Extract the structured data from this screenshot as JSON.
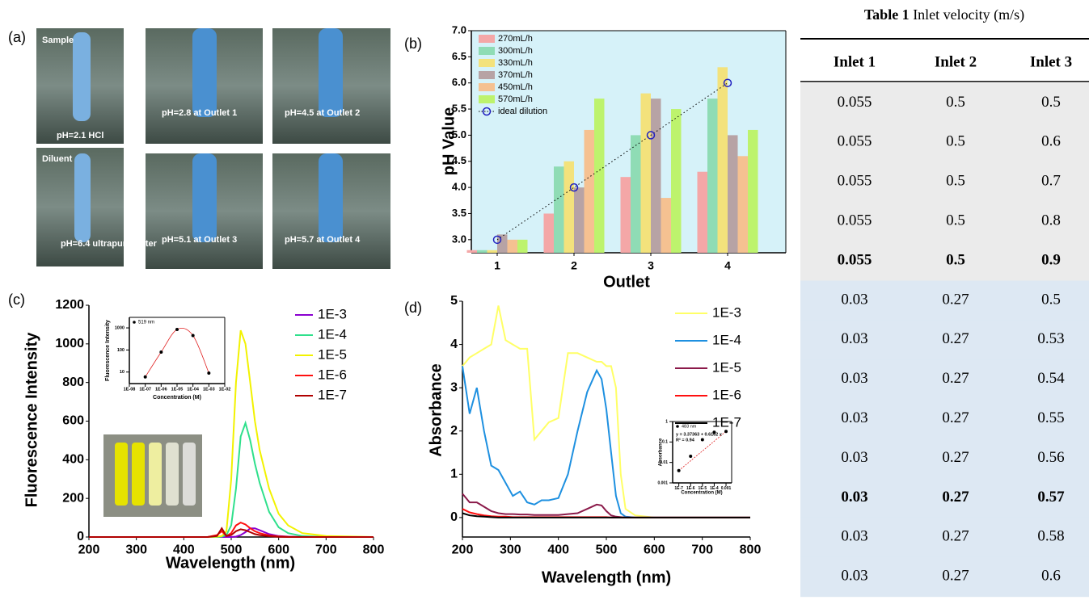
{
  "panel_labels": [
    "(a)",
    "(b)",
    "(c)",
    "(d)"
  ],
  "photos": [
    {
      "title": "Sample",
      "caption": "pH=2.1 HCl"
    },
    {
      "title": "Diluent",
      "caption": "pH=6.4 ultrapure water"
    },
    {
      "caption": "pH=2.8 at Outlet 1"
    },
    {
      "caption": "pH=4.5 at Outlet 2"
    },
    {
      "caption": "pH=5.1 at Outlet 3"
    },
    {
      "caption": "pH=5.7 at Outlet 4"
    }
  ],
  "chart_data": [
    {
      "type": "bar",
      "xlabel": "Outlet",
      "ylabel": "pH Value",
      "categories": [
        "1",
        "2",
        "3",
        "4"
      ],
      "series": [
        {
          "name": "270mL/h",
          "color": "#f4a7a7",
          "values": [
            2.8,
            3.5,
            4.2,
            4.3
          ]
        },
        {
          "name": "300mL/h",
          "color": "#8fdcb5",
          "values": [
            2.8,
            4.4,
            5.0,
            5.7
          ]
        },
        {
          "name": "330mL/h",
          "color": "#f3e27c",
          "values": [
            2.8,
            4.5,
            5.8,
            6.3
          ]
        },
        {
          "name": "370mL/h",
          "color": "#b7a3a5",
          "values": [
            3.1,
            4.0,
            5.7,
            5.0
          ]
        },
        {
          "name": "450mL/h",
          "color": "#f5c191",
          "values": [
            3.0,
            5.1,
            3.8,
            4.6
          ]
        },
        {
          "name": "570mL/h",
          "color": "#bdf36d",
          "values": [
            3.0,
            5.7,
            5.5,
            5.1
          ]
        },
        {
          "name": "ideal dilution",
          "type": "line",
          "color": "#2020c0",
          "values": [
            3.0,
            4.0,
            5.0,
            6.0
          ]
        }
      ],
      "ylim": [
        2.75,
        7.0
      ],
      "yticks": [
        {
          "value": 3.0,
          "label": "3.0"
        },
        3.5,
        {
          "value": 4.0,
          "label": "4.0"
        },
        4.5,
        {
          "value": 5.0,
          "label": "5.0"
        },
        5.5,
        {
          "value": 6.0,
          "label": "6.0"
        },
        6.5,
        {
          "value": 7.0,
          "label": "7.0"
        }
      ],
      "background": "#d6f2f9"
    },
    {
      "type": "line",
      "xlabel": "Wavelength (nm)",
      "ylabel": "Fluorescence Intensity",
      "x": [
        200,
        450,
        470,
        480,
        490,
        500,
        510,
        520,
        530,
        540,
        550,
        560,
        580,
        600,
        620,
        650,
        700,
        800
      ],
      "series": [
        {
          "name": "1E-3",
          "color": "#8a00d0",
          "values": [
            0,
            0,
            0,
            0,
            0,
            0,
            2,
            10,
            25,
            45,
            45,
            35,
            15,
            5,
            2,
            0,
            0,
            0
          ]
        },
        {
          "name": "1E-4",
          "color": "#2fe08c",
          "values": [
            0,
            0,
            0,
            2,
            10,
            60,
            250,
            520,
            590,
            500,
            380,
            280,
            130,
            50,
            20,
            5,
            0,
            0
          ]
        },
        {
          "name": "1E-5",
          "color": "#f2f200",
          "values": [
            0,
            0,
            2,
            5,
            30,
            300,
            800,
            1070,
            1000,
            800,
            600,
            450,
            250,
            120,
            60,
            20,
            5,
            0
          ]
        },
        {
          "name": "1E-6",
          "color": "#ff1010",
          "values": [
            0,
            0,
            10,
            30,
            5,
            20,
            60,
            75,
            65,
            45,
            30,
            20,
            8,
            3,
            1,
            0,
            0,
            0
          ]
        },
        {
          "name": "1E-7",
          "color": "#b00000",
          "values": [
            0,
            0,
            5,
            45,
            5,
            10,
            30,
            40,
            35,
            25,
            15,
            10,
            4,
            1,
            0,
            0,
            0,
            0
          ]
        }
      ],
      "xlim": [
        200,
        800
      ],
      "xticks": [
        200,
        300,
        400,
        500,
        600,
        700,
        800
      ],
      "ylim": [
        0,
        1200
      ],
      "yticks": [
        0,
        200,
        400,
        600,
        800,
        1000,
        1200
      ]
    },
    {
      "type": "scatter",
      "xlabel": "Concentration (M)",
      "ylabel": "Fluorescence Intensity",
      "x": [
        1e-07,
        1e-06,
        1e-05,
        0.0001,
        0.001
      ],
      "series": [
        {
          "name": "519 nm",
          "color": "#000000",
          "fit_color": "#e02020",
          "values": [
            6,
            80,
            850,
            450,
            9
          ]
        }
      ],
      "xscale": "log",
      "yscale": "log",
      "xlim": [
        1e-08,
        0.01
      ],
      "xticks": [
        {
          "value": 1e-08,
          "label": "1E-08"
        },
        {
          "value": 1e-07,
          "label": "1E-07"
        },
        {
          "value": 1e-06,
          "label": "1E-06"
        },
        {
          "value": 1e-05,
          "label": "1E-05"
        },
        {
          "value": 0.0001,
          "label": "1E-04"
        },
        {
          "value": 0.001,
          "label": "1E-03"
        },
        {
          "value": 0.01,
          "label": "1E-02"
        }
      ],
      "ylim": [
        3,
        3000
      ],
      "yticks": [
        10,
        100,
        1000
      ]
    },
    {
      "type": "line",
      "xlabel": "Wavelength (nm)",
      "ylabel": "Absorbance",
      "x": [
        200,
        215,
        230,
        245,
        260,
        275,
        290,
        305,
        320,
        335,
        350,
        365,
        380,
        400,
        420,
        440,
        460,
        480,
        490,
        500,
        510,
        520,
        530,
        540,
        560,
        600,
        700,
        800
      ],
      "series": [
        {
          "name": "1E-3",
          "color": "#ffff66",
          "values": [
            3.5,
            3.7,
            3.8,
            3.9,
            4.0,
            4.9,
            4.1,
            4.0,
            3.9,
            3.9,
            1.8,
            2.0,
            2.2,
            2.3,
            3.8,
            3.8,
            3.7,
            3.6,
            3.6,
            3.5,
            3.5,
            3.0,
            1.0,
            0.2,
            0.05,
            0,
            0,
            0
          ]
        },
        {
          "name": "1E-4",
          "color": "#1e90e0",
          "values": [
            3.5,
            2.4,
            3.0,
            2.0,
            1.2,
            1.1,
            0.8,
            0.5,
            0.6,
            0.35,
            0.3,
            0.4,
            0.4,
            0.45,
            1.0,
            2.0,
            2.9,
            3.4,
            3.2,
            2.5,
            1.5,
            0.5,
            0.1,
            0.02,
            0,
            0,
            0,
            0
          ]
        },
        {
          "name": "1E-5",
          "color": "#8b1a4a",
          "values": [
            0.55,
            0.35,
            0.35,
            0.25,
            0.15,
            0.1,
            0.08,
            0.08,
            0.07,
            0.07,
            0.06,
            0.06,
            0.06,
            0.06,
            0.08,
            0.1,
            0.2,
            0.3,
            0.28,
            0.15,
            0.05,
            0.02,
            0.01,
            0,
            0,
            0,
            0,
            0
          ]
        },
        {
          "name": "1E-6",
          "color": "#ff1010",
          "values": [
            0.2,
            0.12,
            0.08,
            0.05,
            0.03,
            0.02,
            0.02,
            0.01,
            0.01,
            0.01,
            0.01,
            0.01,
            0.01,
            0.01,
            0.01,
            0.01,
            0.01,
            0.01,
            0.01,
            0.01,
            0,
            0,
            0,
            0,
            0,
            0,
            0,
            0
          ]
        },
        {
          "name": "1E-7",
          "color": "#000000",
          "values": [
            0.1,
            0.05,
            0.03,
            0.02,
            0.01,
            0,
            0,
            0,
            0,
            0,
            0,
            0,
            0,
            0,
            0,
            0,
            0,
            0,
            0,
            0,
            0,
            0,
            0,
            0,
            0,
            0,
            0,
            0
          ]
        }
      ],
      "xlim": [
        200,
        800
      ],
      "xticks": [
        200,
        300,
        400,
        500,
        600,
        700,
        800
      ],
      "ylim": [
        -0.45,
        5
      ],
      "yticks": [
        0,
        1,
        2,
        3,
        4,
        5
      ]
    },
    {
      "type": "scatter",
      "xlabel": "Concentration (M)",
      "ylabel": "Absorbance",
      "annotations": [
        "y = 3.37363 + 0.6162 x",
        "R² = 0.94"
      ],
      "x": [
        1e-07,
        1e-06,
        1e-05,
        0.0001,
        0.001
      ],
      "series": [
        {
          "name": "483 nm",
          "color": "#000000",
          "fit_color": "#e02020",
          "values": [
            0.004,
            0.02,
            0.13,
            0.3,
            0.33
          ]
        }
      ],
      "xscale": "log",
      "yscale": "log",
      "xlim": [
        3e-08,
        0.003
      ],
      "xticks": [
        {
          "value": 1e-07,
          "label": "1E-7"
        },
        {
          "value": 1e-06,
          "label": "1E-6"
        },
        {
          "value": 1e-05,
          "label": "1E-5"
        },
        {
          "value": 0.0001,
          "label": "1E-4"
        },
        0.001
      ],
      "ylim": [
        0.001,
        1
      ],
      "yticks": [
        0.001,
        0.01,
        0.1,
        1
      ]
    }
  ],
  "table": {
    "caption_label": "Table 1",
    "caption": "Inlet velocity (m/s)",
    "header": [
      "Inlet 1",
      "Inlet 2",
      "Inlet 3"
    ],
    "rows": [
      [
        "0.055",
        "0.5",
        "0.5"
      ],
      [
        "0.055",
        "0.5",
        "0.6"
      ],
      [
        "0.055",
        "0.5",
        "0.7"
      ],
      [
        "0.055",
        "0.5",
        "0.8"
      ],
      [
        "0.055",
        "0.5",
        "0.9"
      ],
      [
        "0.03",
        "0.27",
        "0.5"
      ],
      [
        "0.03",
        "0.27",
        "0.53"
      ],
      [
        "0.03",
        "0.27",
        "0.54"
      ],
      [
        "0.03",
        "0.27",
        "0.55"
      ],
      [
        "0.03",
        "0.27",
        "0.56"
      ],
      [
        "0.03",
        "0.27",
        "0.57"
      ],
      [
        "0.03",
        "0.27",
        "0.58"
      ],
      [
        "0.03",
        "0.27",
        "0.6"
      ]
    ],
    "bold_rows": [
      4,
      10
    ],
    "group_colors": [
      "#ebebeb",
      "#dde8f3"
    ]
  }
}
